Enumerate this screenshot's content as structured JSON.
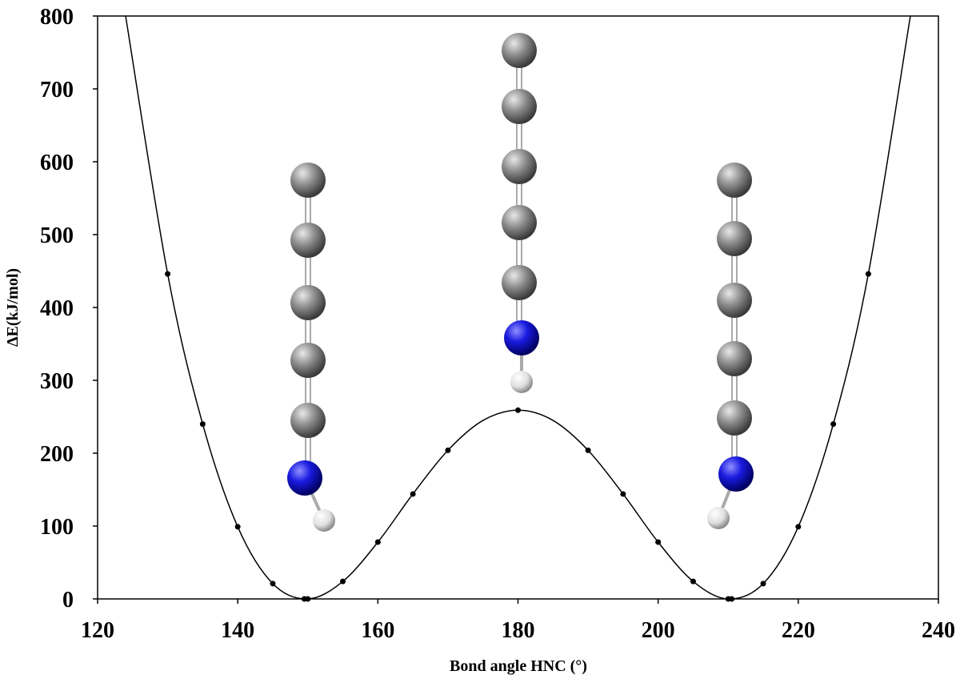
{
  "chart_data": {
    "type": "scatter-line",
    "x_label": "Bond angle HNC (°)",
    "y_label": "ΔE(kJ/mol)",
    "xlim": [
      120,
      240
    ],
    "xticks": [
      120,
      140,
      160,
      180,
      200,
      220,
      240
    ],
    "ylim": [
      0,
      800
    ],
    "yticks": [
      0,
      100,
      200,
      300,
      400,
      500,
      600,
      700,
      800
    ],
    "series": [
      {
        "color": "#000000",
        "line": true,
        "markers": false,
        "x": [
          124,
          130,
          135,
          140,
          145,
          150,
          155,
          160,
          165,
          170,
          175,
          180,
          185,
          190,
          195,
          200,
          205,
          210,
          215,
          220,
          225,
          230,
          236
        ],
        "values": [
          800,
          446,
          240,
          99,
          21,
          0,
          24,
          78,
          144,
          204,
          245,
          259,
          245,
          204,
          144,
          78,
          24,
          0,
          21,
          99,
          240,
          446,
          800
        ]
      },
      {
        "color": "#000000",
        "line": false,
        "markers": true,
        "x": [
          130,
          135,
          140,
          145,
          149.5,
          150,
          155,
          160,
          165,
          170,
          180,
          190,
          195,
          200,
          205,
          210,
          210.5,
          215,
          220,
          225,
          230
        ],
        "values": [
          446,
          240,
          99,
          21,
          0,
          0,
          24,
          78,
          144,
          204,
          259,
          204,
          144,
          78,
          24,
          0,
          0,
          21,
          99,
          240,
          446
        ]
      }
    ]
  }
}
